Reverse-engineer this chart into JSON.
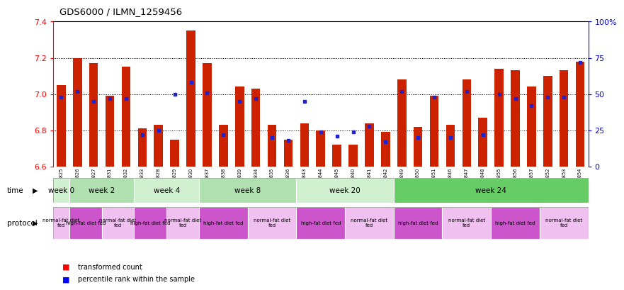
{
  "title": "GDS6000 / ILMN_1259456",
  "samples": [
    "GSM1577825",
    "GSM1577826",
    "GSM1577827",
    "GSM1577831",
    "GSM1577832",
    "GSM1577833",
    "GSM1577828",
    "GSM1577829",
    "GSM1577830",
    "GSM1577837",
    "GSM1577838",
    "GSM1577839",
    "GSM1577834",
    "GSM1577835",
    "GSM1577836",
    "GSM1577843",
    "GSM1577844",
    "GSM1577845",
    "GSM1577840",
    "GSM1577841",
    "GSM1577842",
    "GSM1577849",
    "GSM1577850",
    "GSM1577851",
    "GSM1577846",
    "GSM1577847",
    "GSM1577848",
    "GSM1577855",
    "GSM1577856",
    "GSM1577857",
    "GSM1577852",
    "GSM1577853",
    "GSM1577854"
  ],
  "red_values": [
    7.05,
    7.2,
    7.17,
    6.99,
    7.15,
    6.81,
    6.83,
    6.75,
    7.35,
    7.17,
    6.83,
    7.04,
    7.03,
    6.83,
    6.75,
    6.84,
    6.8,
    6.72,
    6.72,
    6.84,
    6.79,
    7.08,
    6.82,
    6.99,
    6.83,
    7.08,
    6.87,
    7.14,
    7.13,
    7.04,
    7.1,
    7.13,
    7.18
  ],
  "blue_percentiles": [
    48,
    52,
    45,
    47,
    47,
    22,
    25,
    50,
    58,
    51,
    22,
    45,
    47,
    20,
    18,
    45,
    24,
    21,
    24,
    28,
    17,
    52,
    20,
    48,
    20,
    52,
    22,
    50,
    47,
    42,
    48,
    48,
    72
  ],
  "ymin": 6.6,
  "ymax": 7.4,
  "yticks_left": [
    6.6,
    6.8,
    7.0,
    7.2,
    7.4
  ],
  "yticks_right": [
    0,
    25,
    50,
    75,
    100
  ],
  "time_groups": [
    {
      "label": "week 0",
      "start": 0,
      "end": 1,
      "color": "#d0f0d0"
    },
    {
      "label": "week 2",
      "start": 1,
      "end": 5,
      "color": "#b0e0b0"
    },
    {
      "label": "week 4",
      "start": 5,
      "end": 9,
      "color": "#d0f0d0"
    },
    {
      "label": "week 8",
      "start": 9,
      "end": 15,
      "color": "#b0e0b0"
    },
    {
      "label": "week 20",
      "start": 15,
      "end": 21,
      "color": "#d0f0d0"
    },
    {
      "label": "week 24",
      "start": 21,
      "end": 33,
      "color": "#66cc66"
    }
  ],
  "protocol_groups": [
    {
      "label": "normal-fat diet\nfed",
      "start": 0,
      "end": 1,
      "color": "#f0c0f0"
    },
    {
      "label": "high-fat diet fed",
      "start": 1,
      "end": 3,
      "color": "#cc55cc"
    },
    {
      "label": "normal-fat diet\nfed",
      "start": 3,
      "end": 5,
      "color": "#f0c0f0"
    },
    {
      "label": "high-fat diet fed",
      "start": 5,
      "end": 7,
      "color": "#cc55cc"
    },
    {
      "label": "normal-fat diet\nfed",
      "start": 7,
      "end": 9,
      "color": "#f0c0f0"
    },
    {
      "label": "high-fat diet fed",
      "start": 9,
      "end": 12,
      "color": "#cc55cc"
    },
    {
      "label": "normal-fat diet\nfed",
      "start": 12,
      "end": 15,
      "color": "#f0c0f0"
    },
    {
      "label": "high-fat diet fed",
      "start": 15,
      "end": 18,
      "color": "#cc55cc"
    },
    {
      "label": "normal-fat diet\nfed",
      "start": 18,
      "end": 21,
      "color": "#f0c0f0"
    },
    {
      "label": "high-fat diet fed",
      "start": 21,
      "end": 24,
      "color": "#cc55cc"
    },
    {
      "label": "normal-fat diet\nfed",
      "start": 24,
      "end": 27,
      "color": "#f0c0f0"
    },
    {
      "label": "high-fat diet fed",
      "start": 27,
      "end": 30,
      "color": "#cc55cc"
    },
    {
      "label": "normal-fat diet\nfed",
      "start": 30,
      "end": 33,
      "color": "#f0c0f0"
    }
  ],
  "bar_color": "#cc2200",
  "blue_color": "#2222cc",
  "background_color": "#ffffff",
  "xtick_bg": "#d8d8d8"
}
